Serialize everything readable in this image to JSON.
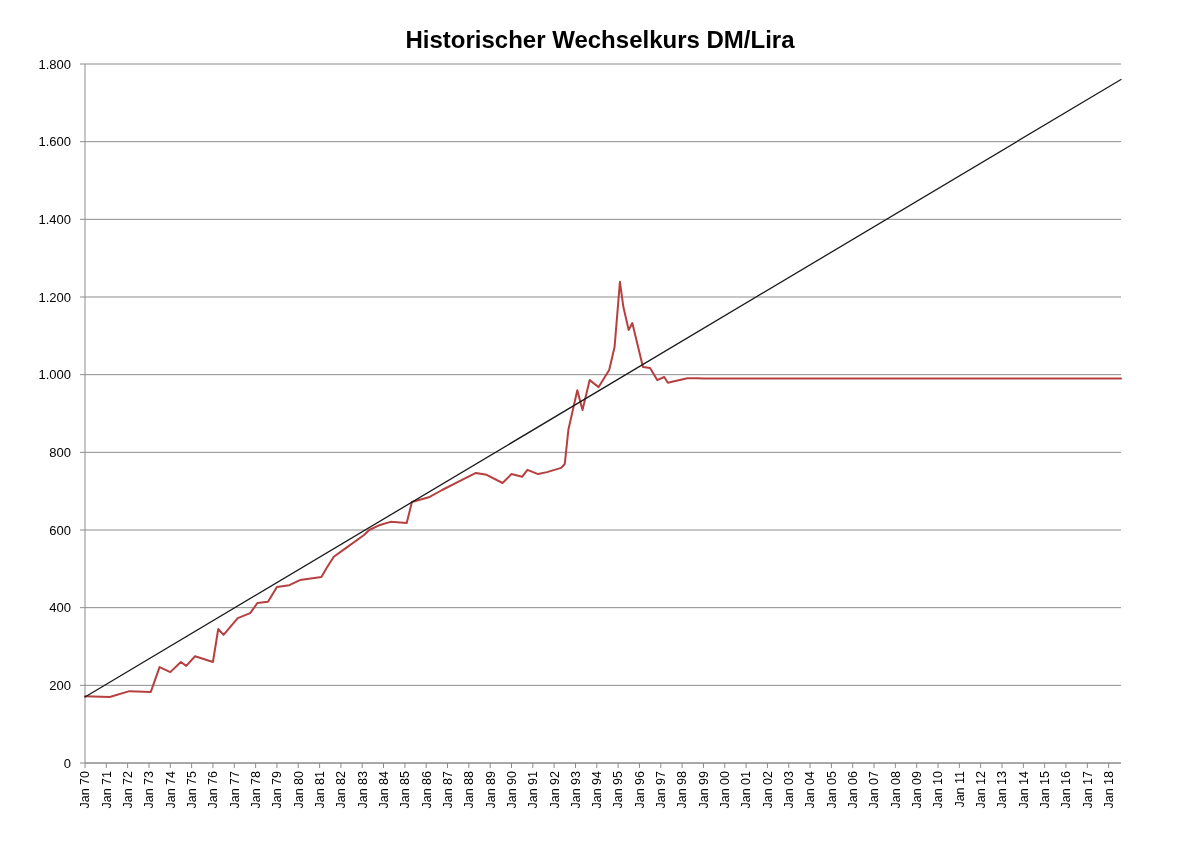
{
  "chart_data": {
    "type": "line",
    "title": "Historischer Wechselkurs DM/Lira",
    "xlim": [
      "1970-01",
      "2018-08"
    ],
    "xticks": [
      {
        "value": "1970-01",
        "label": "Jan 70"
      },
      {
        "value": "1971-01",
        "label": "Jan 71"
      },
      {
        "value": "1972-01",
        "label": "Jan 72"
      },
      {
        "value": "1973-01",
        "label": "Jan 73"
      },
      {
        "value": "1974-01",
        "label": "Jan 74"
      },
      {
        "value": "1975-01",
        "label": "Jan 75"
      },
      {
        "value": "1976-01",
        "label": "Jan 76"
      },
      {
        "value": "1977-01",
        "label": "Jan 77"
      },
      {
        "value": "1978-01",
        "label": "Jan 78"
      },
      {
        "value": "1979-01",
        "label": "Jan 79"
      },
      {
        "value": "1980-01",
        "label": "Jan 80"
      },
      {
        "value": "1981-01",
        "label": "Jan 81"
      },
      {
        "value": "1982-01",
        "label": "Jan 82"
      },
      {
        "value": "1983-01",
        "label": "Jan 83"
      },
      {
        "value": "1984-01",
        "label": "Jan 84"
      },
      {
        "value": "1985-01",
        "label": "Jan 85"
      },
      {
        "value": "1986-01",
        "label": "Jan 86"
      },
      {
        "value": "1987-01",
        "label": "Jan 87"
      },
      {
        "value": "1988-01",
        "label": "Jan 88"
      },
      {
        "value": "1989-01",
        "label": "Jan 89"
      },
      {
        "value": "1990-01",
        "label": "Jan 90"
      },
      {
        "value": "1991-01",
        "label": "Jan 91"
      },
      {
        "value": "1992-01",
        "label": "Jan 92"
      },
      {
        "value": "1993-01",
        "label": "Jan 93"
      },
      {
        "value": "1994-01",
        "label": "Jan 94"
      },
      {
        "value": "1995-01",
        "label": "Jan 95"
      },
      {
        "value": "1996-01",
        "label": "Jan 96"
      },
      {
        "value": "1997-01",
        "label": "Jan 97"
      },
      {
        "value": "1998-01",
        "label": "Jan 98"
      },
      {
        "value": "1999-01",
        "label": "Jan 99"
      },
      {
        "value": "2000-01",
        "label": "Jan 00"
      },
      {
        "value": "2001-01",
        "label": "Jan 01"
      },
      {
        "value": "2002-01",
        "label": "Jan 02"
      },
      {
        "value": "2003-01",
        "label": "Jan 03"
      },
      {
        "value": "2004-01",
        "label": "Jan 04"
      },
      {
        "value": "2005-01",
        "label": "Jan 05"
      },
      {
        "value": "2006-01",
        "label": "Jan 06"
      },
      {
        "value": "2007-01",
        "label": "Jan 07"
      },
      {
        "value": "2008-01",
        "label": "Jan 08"
      },
      {
        "value": "2009-01",
        "label": "Jan 09"
      },
      {
        "value": "2010-01",
        "label": "Jan 10"
      },
      {
        "value": "2011-01",
        "label": "Jan 11"
      },
      {
        "value": "2012-01",
        "label": "Jan 12"
      },
      {
        "value": "2013-01",
        "label": "Jan 13"
      },
      {
        "value": "2014-01",
        "label": "Jan 14"
      },
      {
        "value": "2015-01",
        "label": "Jan 15"
      },
      {
        "value": "2016-01",
        "label": "Jan 16"
      },
      {
        "value": "2017-01",
        "label": "Jan 17"
      },
      {
        "value": "2018-01",
        "label": "Jan 18"
      }
    ],
    "ylim": [
      0,
      1800
    ],
    "yticks": [
      0,
      200,
      400,
      600,
      800,
      {
        "value": 1000,
        "label": "1.000"
      },
      {
        "value": 1200,
        "label": "1.200"
      },
      {
        "value": 1400,
        "label": "1.400"
      },
      {
        "value": 1600,
        "label": "1.600"
      },
      {
        "value": 1800,
        "label": "1.800"
      }
    ],
    "grid": "y",
    "series": [
      {
        "color": "#b5403f",
        "x": [
          "1970-01",
          "1971-03",
          "1972-02",
          "1973-02",
          "1973-07",
          "1974-01",
          "1974-07",
          "1974-10",
          "1975-03",
          "1976-01",
          "1976-04",
          "1976-07",
          "1977-03",
          "1977-10",
          "1978-02",
          "1978-08",
          "1979-01",
          "1979-08",
          "1980-02",
          "1981-02",
          "1981-05",
          "1981-09",
          "1982-04",
          "1983-02",
          "1983-05",
          "1983-11",
          "1984-05",
          "1985-02",
          "1985-05",
          "1986-03",
          "1986-10",
          "1987-07",
          "1988-05",
          "1988-11",
          "1989-08",
          "1990-01",
          "1990-07",
          "1990-10",
          "1991-04",
          "1991-09",
          "1992-05",
          "1992-07",
          "1992-09",
          "1993-02",
          "1993-05",
          "1993-09",
          "1994-02",
          "1994-08",
          "1994-11",
          "1995-02",
          "1995-04",
          "1995-07",
          "1995-09",
          "1996-03",
          "1996-07",
          "1996-11",
          "1997-03",
          "1997-05",
          "1998-04",
          "1998-10",
          "1999-01",
          "2018-08"
        ],
        "values": [
          172,
          170,
          185,
          183,
          247,
          234,
          260,
          250,
          275,
          260,
          345,
          330,
          373,
          386,
          412,
          415,
          453,
          458,
          471,
          479,
          502,
          531,
          554,
          587,
          600,
          613,
          621,
          618,
          672,
          685,
          703,
          724,
          747,
          742,
          721,
          744,
          737,
          755,
          744,
          749,
          760,
          770,
          858,
          960,
          909,
          986,
          968,
          1012,
          1071,
          1239,
          1174,
          1115,
          1133,
          1020,
          1017,
          986,
          994,
          979,
          991,
          991,
          990,
          990
        ]
      },
      {
        "type": "line",
        "color": "#1a1a1a",
        "x": [
          "1970-01",
          "2018-08"
        ],
        "values": [
          170,
          1760
        ]
      }
    ]
  }
}
